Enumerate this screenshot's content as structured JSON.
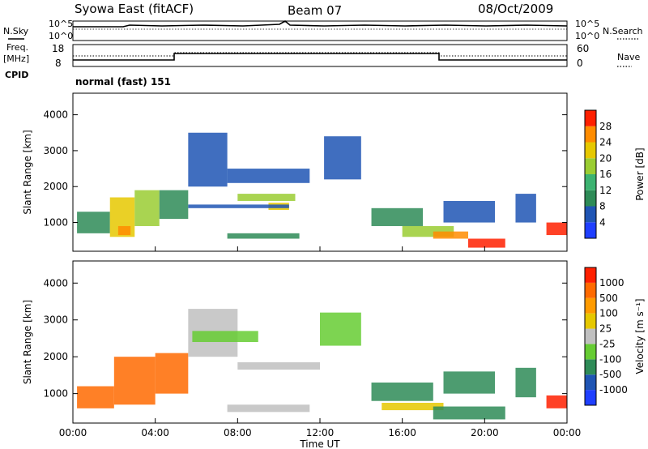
{
  "header": {
    "title": "Syowa East (fitACF)",
    "beam": "Beam 07",
    "date": "08/Oct/2009"
  },
  "status_panel": {
    "left_labels": [
      "N.Sky",
      "Freq.",
      "[MHz]",
      "CPID"
    ],
    "right_labels": [
      "N.Search",
      "Nave"
    ],
    "nsky_axis": [
      "10^5",
      "10^0"
    ],
    "nsearch_axis": [
      "10^5",
      "10^0"
    ],
    "freq_axis": [
      "18",
      "8"
    ],
    "nave_axis": [
      "60",
      "0"
    ],
    "cpid_text": "normal (fast) 151"
  },
  "chart_data": [
    {
      "type": "heatmap",
      "name": "power",
      "ylabel": "Slant Range [km]",
      "xlabel": "",
      "ylim": [
        200,
        4600
      ],
      "yticks": [
        "1000",
        "2000",
        "3000",
        "4000"
      ],
      "xticks": [
        "00:00",
        "04:00",
        "08:00",
        "12:00",
        "16:00",
        "20:00",
        "00:00"
      ],
      "colorbar": {
        "label": "Power [dB]",
        "ticks": [
          "4",
          "8",
          "12",
          "16",
          "20",
          "24",
          "28"
        ],
        "colors": [
          "#1f3fff",
          "#1f55b4",
          "#2e8b57",
          "#3cb371",
          "#9acd32",
          "#e6c800",
          "#ff8c00",
          "#ff2000"
        ]
      },
      "regions": [
        {
          "t0": 0.2,
          "t1": 1.8,
          "r0": 700,
          "r1": 1300,
          "color": "#2e8b57"
        },
        {
          "t0": 1.8,
          "t1": 3.0,
          "r0": 600,
          "r1": 1700,
          "color": "#e6c800"
        },
        {
          "t0": 2.2,
          "t1": 2.8,
          "r0": 650,
          "r1": 900,
          "color": "#ff8c00"
        },
        {
          "t0": 3.0,
          "t1": 4.2,
          "r0": 900,
          "r1": 1900,
          "color": "#9acd32"
        },
        {
          "t0": 4.2,
          "t1": 5.6,
          "r0": 1100,
          "r1": 1900,
          "color": "#2e8b57"
        },
        {
          "t0": 5.6,
          "t1": 7.5,
          "r0": 2000,
          "r1": 3500,
          "color": "#1f55b4"
        },
        {
          "t0": 8.0,
          "t1": 10.8,
          "r0": 1600,
          "r1": 1800,
          "color": "#9acd32"
        },
        {
          "t0": 9.5,
          "t1": 10.5,
          "r0": 1350,
          "r1": 1550,
          "color": "#e6c800"
        },
        {
          "t0": 7.5,
          "t1": 11.5,
          "r0": 2100,
          "r1": 2500,
          "color": "#1f55b4"
        },
        {
          "t0": 5.6,
          "t1": 10.5,
          "r0": 1400,
          "r1": 1500,
          "color": "#1f55b4"
        },
        {
          "t0": 7.5,
          "t1": 11.0,
          "r0": 550,
          "r1": 700,
          "color": "#2e8b57"
        },
        {
          "t0": 12.2,
          "t1": 14.0,
          "r0": 2200,
          "r1": 3400,
          "color": "#1f55b4"
        },
        {
          "t0": 14.5,
          "t1": 17.0,
          "r0": 900,
          "r1": 1400,
          "color": "#2e8b57"
        },
        {
          "t0": 16.0,
          "t1": 18.5,
          "r0": 600,
          "r1": 900,
          "color": "#9acd32"
        },
        {
          "t0": 17.5,
          "t1": 19.2,
          "r0": 550,
          "r1": 750,
          "color": "#ff8c00"
        },
        {
          "t0": 19.2,
          "t1": 21.0,
          "r0": 300,
          "r1": 550,
          "color": "#ff2000"
        },
        {
          "t0": 18.0,
          "t1": 20.5,
          "r0": 1000,
          "r1": 1600,
          "color": "#1f55b4"
        },
        {
          "t0": 21.5,
          "t1": 22.5,
          "r0": 1000,
          "r1": 1800,
          "color": "#1f55b4"
        },
        {
          "t0": 23.0,
          "t1": 24.0,
          "r0": 650,
          "r1": 1000,
          "color": "#ff2000"
        }
      ]
    },
    {
      "type": "heatmap",
      "name": "velocity",
      "ylabel": "Slant Range [km]",
      "xlabel": "Time UT",
      "ylim": [
        200,
        4600
      ],
      "yticks": [
        "1000",
        "2000",
        "3000",
        "4000"
      ],
      "xticks": [
        "00:00",
        "04:00",
        "08:00",
        "12:00",
        "16:00",
        "20:00",
        "00:00"
      ],
      "colorbar": {
        "label": "Velocity [m s⁻¹]",
        "ticks": [
          "1000",
          "500",
          "100",
          "25",
          "-25",
          "-100",
          "-500",
          "-1000"
        ],
        "colors": [
          "#1f3fff",
          "#1f55b4",
          "#2e8b57",
          "#66cc33",
          "#c0c0c0",
          "#e6c800",
          "#ff9b00",
          "#ff6a00",
          "#ff2000"
        ]
      },
      "regions": [
        {
          "t0": 0.2,
          "t1": 2.0,
          "r0": 600,
          "r1": 1200,
          "color": "#ff6a00"
        },
        {
          "t0": 2.0,
          "t1": 4.0,
          "r0": 700,
          "r1": 2000,
          "color": "#ff6a00"
        },
        {
          "t0": 4.0,
          "t1": 5.6,
          "r0": 1000,
          "r1": 2100,
          "color": "#ff6a00"
        },
        {
          "t0": 5.6,
          "t1": 8.0,
          "r0": 2000,
          "r1": 3300,
          "color": "#c0c0c0"
        },
        {
          "t0": 8.0,
          "t1": 12.0,
          "r0": 1650,
          "r1": 1850,
          "color": "#c0c0c0"
        },
        {
          "t0": 7.5,
          "t1": 11.5,
          "r0": 500,
          "r1": 700,
          "color": "#c0c0c0"
        },
        {
          "t0": 5.8,
          "t1": 9.0,
          "r0": 2400,
          "r1": 2700,
          "color": "#66cc33"
        },
        {
          "t0": 12.0,
          "t1": 14.0,
          "r0": 2300,
          "r1": 3200,
          "color": "#66cc33"
        },
        {
          "t0": 14.5,
          "t1": 17.5,
          "r0": 800,
          "r1": 1300,
          "color": "#2e8b57"
        },
        {
          "t0": 15.0,
          "t1": 18.0,
          "r0": 550,
          "r1": 750,
          "color": "#e6c800"
        },
        {
          "t0": 17.5,
          "t1": 21.0,
          "r0": 300,
          "r1": 650,
          "color": "#2e8b57"
        },
        {
          "t0": 18.0,
          "t1": 20.5,
          "r0": 1000,
          "r1": 1600,
          "color": "#2e8b57"
        },
        {
          "t0": 21.5,
          "t1": 22.5,
          "r0": 900,
          "r1": 1700,
          "color": "#2e8b57"
        },
        {
          "t0": 23.0,
          "t1": 24.0,
          "r0": 600,
          "r1": 950,
          "color": "#ff2000"
        }
      ]
    }
  ]
}
